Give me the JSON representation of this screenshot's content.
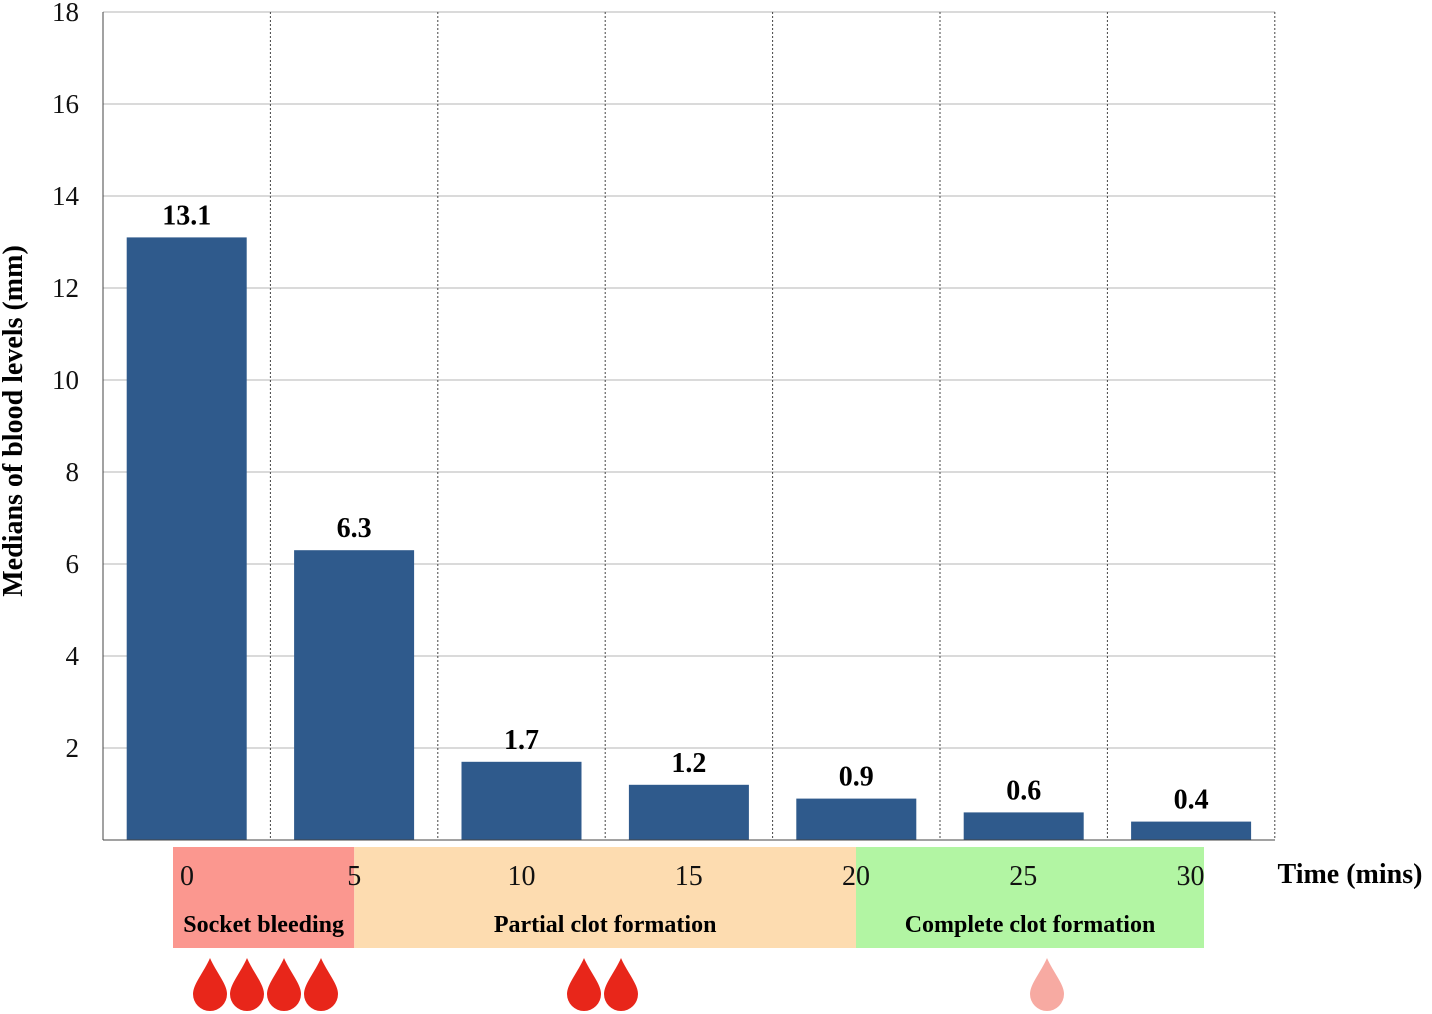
{
  "chart_data": {
    "type": "bar",
    "categories": [
      "0",
      "5",
      "10",
      "15",
      "20",
      "25",
      "30"
    ],
    "values": [
      13.1,
      6.3,
      1.7,
      1.2,
      0.9,
      0.6,
      0.4
    ],
    "value_labels": [
      "13.1",
      "6.3",
      "1.7",
      "1.2",
      "0.9",
      "0.6",
      "0.4"
    ],
    "title": "",
    "xlabel": "Time (mins)",
    "ylabel": "Medians of blood levels (mm)",
    "ylim": [
      0,
      18
    ],
    "yticks": [
      "2",
      "4",
      "6",
      "8",
      "10",
      "12",
      "14",
      "16",
      "18"
    ],
    "grid": true,
    "bar_color": "#2f5a8c",
    "time_axis": [
      "0",
      "5",
      "10",
      "15",
      "20",
      "25",
      "30"
    ],
    "phases": [
      {
        "label": "Socket bleeding",
        "from": 0,
        "to": 5,
        "color": "#fb978f",
        "drops": 4,
        "drop_color": "#e8261a"
      },
      {
        "label": "Partial clot formation",
        "from": 5,
        "to": 20,
        "color": "#fddcb0",
        "drops": 2,
        "drop_color": "#e8261a"
      },
      {
        "label": "Complete clot formation",
        "from": 20,
        "to": 30,
        "color": "#b2f5a3",
        "drops": 1,
        "drop_color": "#f7aaa2"
      }
    ]
  }
}
